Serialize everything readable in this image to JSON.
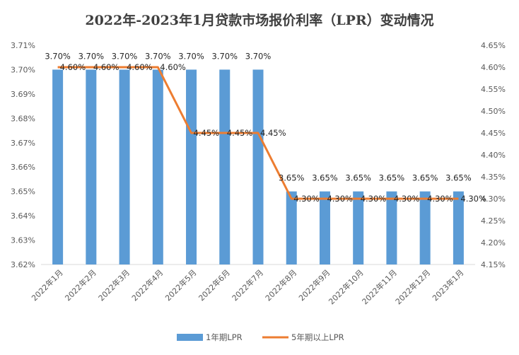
{
  "chart_data": {
    "type": "bar",
    "title": "2022年-2023年1月贷款市场报价利率（LPR）变动情况",
    "categories": [
      "2022年1月",
      "2022年2月",
      "2022年3月",
      "2022年4月",
      "2022年5月",
      "2022年6月",
      "2022年7月",
      "2022年8月",
      "2022年9月",
      "2022年10月",
      "2022年11月",
      "2022年12月",
      "2023年1月"
    ],
    "series": [
      {
        "name": "1年期LPR",
        "type": "bar",
        "axis": "left",
        "color": "#5B9BD5",
        "values": [
          3.7,
          3.7,
          3.7,
          3.7,
          3.7,
          3.7,
          3.7,
          3.65,
          3.65,
          3.65,
          3.65,
          3.65,
          3.65
        ],
        "labels": [
          "3.70%",
          "3.70%",
          "3.70%",
          "3.70%",
          "3.70%",
          "3.70%",
          "3.70%",
          "3.65%",
          "3.65%",
          "3.65%",
          "3.65%",
          "3.65%",
          "3.65%"
        ]
      },
      {
        "name": "5年期以上LPR",
        "type": "line",
        "axis": "right",
        "color": "#ED7D31",
        "values": [
          4.6,
          4.6,
          4.6,
          4.6,
          4.45,
          4.45,
          4.45,
          4.3,
          4.3,
          4.3,
          4.3,
          4.3,
          4.3
        ],
        "labels": [
          "4.60%",
          "4.60%",
          "4.60%",
          "4.60%",
          "4.45%",
          "4.45%",
          "4.45%",
          "4.30%",
          "4.30%",
          "4.30%",
          "4.30%",
          "4.30%",
          "4.30%"
        ]
      }
    ],
    "y_left": {
      "min": 3.62,
      "max": 3.71,
      "ticks": [
        "3.62%",
        "3.63%",
        "3.64%",
        "3.65%",
        "3.66%",
        "3.67%",
        "3.68%",
        "3.69%",
        "3.70%",
        "3.71%"
      ]
    },
    "y_right": {
      "min": 4.15,
      "max": 4.65,
      "ticks": [
        "4.15%",
        "4.20%",
        "4.25%",
        "4.30%",
        "4.35%",
        "4.40%",
        "4.45%",
        "4.50%",
        "4.55%",
        "4.60%",
        "4.65%"
      ]
    },
    "grid": false,
    "legend_position": "bottom"
  }
}
